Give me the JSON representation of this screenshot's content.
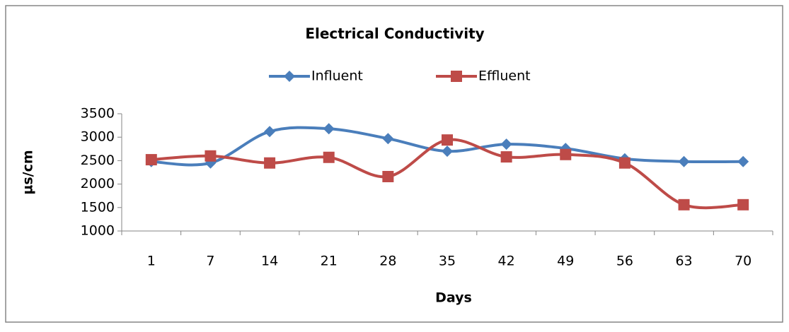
{
  "chart_data": {
    "type": "line",
    "title": "Electrical  Conductivity",
    "x_label": "Days",
    "y_label": "µs/cm",
    "categories": [
      "1",
      "7",
      "14",
      "21",
      "28",
      "35",
      "42",
      "49",
      "56",
      "63",
      "70"
    ],
    "series": [
      {
        "name": "Influent",
        "color": "#4a7ebb",
        "marker": "diamond",
        "values": [
          2480,
          2450,
          3120,
          3180,
          2970,
          2700,
          2850,
          2760,
          2540,
          2480,
          2480
        ]
      },
      {
        "name": "Effluent",
        "color": "#be4b48",
        "marker": "square",
        "values": [
          2520,
          2600,
          2450,
          2570,
          2160,
          2940,
          2580,
          2630,
          2450,
          1560,
          1560
        ]
      }
    ],
    "ylim": [
      1000,
      3500
    ],
    "yticks": [
      1000,
      1500,
      2000,
      2500,
      3000,
      3500
    ],
    "grid": false,
    "smooth": true,
    "legend": "top"
  }
}
